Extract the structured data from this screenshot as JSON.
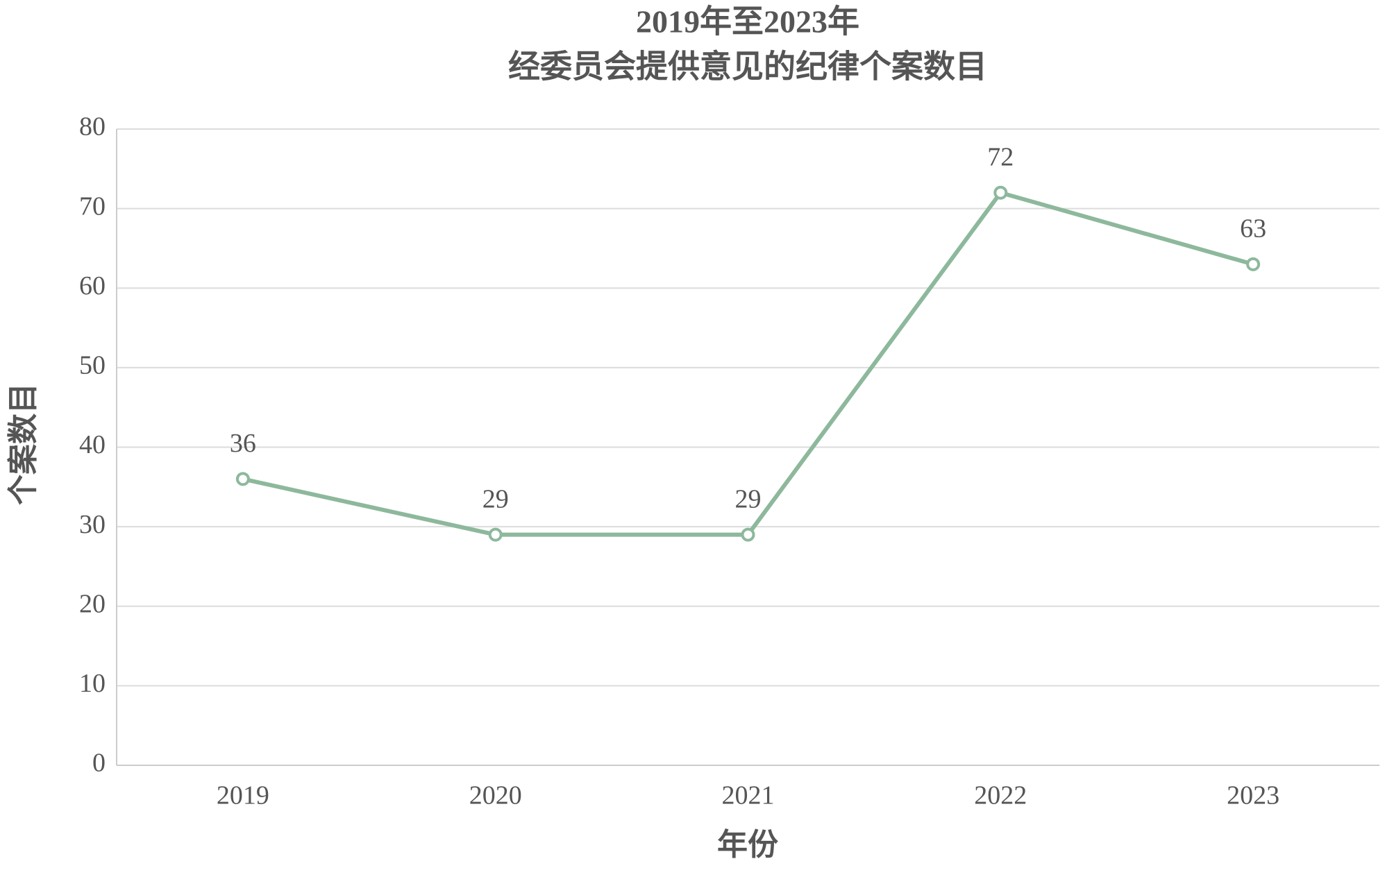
{
  "chart_data": {
    "type": "line",
    "title": [
      "2019年至2023年",
      "经委员会提供意见的纪律个案数目"
    ],
    "x_label": "年份",
    "y_label": "个案数目",
    "categories": [
      "2019",
      "2020",
      "2021",
      "2022",
      "2023"
    ],
    "series": [
      {
        "name": "个案数目",
        "color": "#8db89c",
        "values": [
          36,
          29,
          29,
          72,
          63
        ]
      }
    ],
    "ylim": [
      0,
      80
    ],
    "yticks": [
      0,
      10,
      20,
      30,
      40,
      50,
      60,
      70,
      80
    ],
    "grid": true
  }
}
